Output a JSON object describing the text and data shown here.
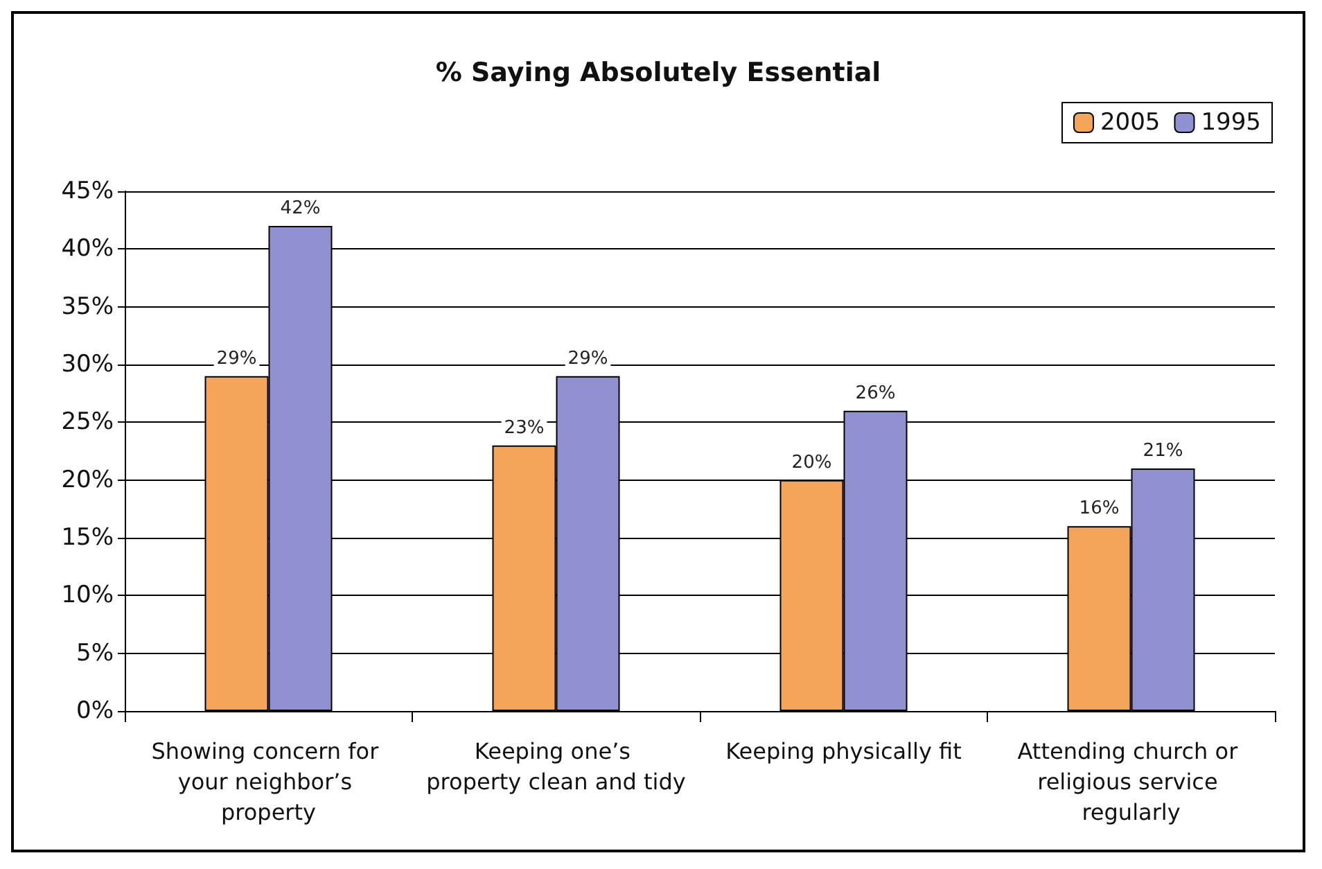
{
  "chart_data": {
    "type": "bar",
    "title": "% Saying Absolutely Essential",
    "categories": [
      "Showing concern for your neighbor’s property",
      "Keeping one’s property clean and tidy",
      "Keeping physically fit",
      "Attending church or religious service regularly"
    ],
    "series": [
      {
        "name": "2005",
        "color": "#f5a55a",
        "values": [
          29,
          23,
          20,
          16
        ],
        "value_labels": [
          "29%",
          "23%",
          "20%",
          "16%"
        ]
      },
      {
        "name": "1995",
        "color": "#9191d2",
        "values": [
          42,
          29,
          26,
          21
        ],
        "value_labels": [
          "42%",
          "29%",
          "26%",
          "21%"
        ]
      }
    ],
    "ylim": [
      0,
      45
    ],
    "yticks": [
      {
        "value": 0,
        "label": "0%"
      },
      {
        "value": 5,
        "label": "5%"
      },
      {
        "value": 10,
        "label": "10%"
      },
      {
        "value": 15,
        "label": "15%"
      },
      {
        "value": 20,
        "label": "20%"
      },
      {
        "value": 25,
        "label": "25%"
      },
      {
        "value": 30,
        "label": "30%"
      },
      {
        "value": 35,
        "label": "35%"
      },
      {
        "value": 40,
        "label": "40%"
      },
      {
        "value": 45,
        "label": "45%"
      }
    ],
    "grid": "y",
    "legend": "top right"
  }
}
